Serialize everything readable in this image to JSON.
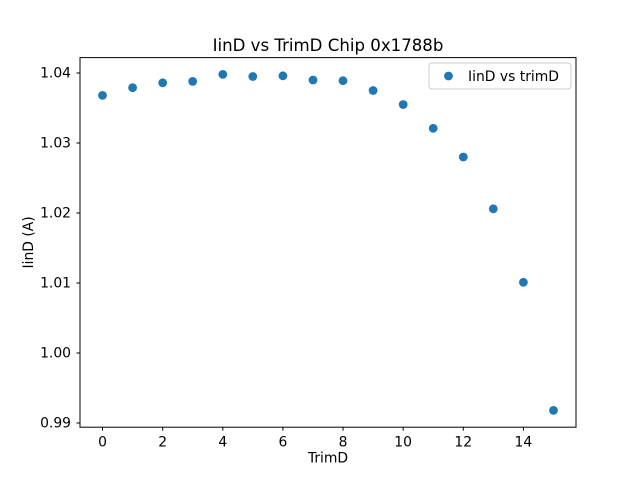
{
  "chart_data": {
    "type": "scatter",
    "title": "IinD vs TrimD Chip 0x1788b",
    "xlabel": "TrimD",
    "ylabel": "IinD (A)",
    "series": [
      {
        "name": "IinD vs trimD",
        "x": [
          0,
          1,
          2,
          3,
          4,
          5,
          6,
          7,
          8,
          9,
          10,
          11,
          12,
          13,
          14,
          15
        ],
        "y": [
          1.0368,
          1.0379,
          1.0386,
          1.0388,
          1.0398,
          1.0395,
          1.0396,
          1.039,
          1.0389,
          1.0375,
          1.0355,
          1.0321,
          1.028,
          1.0206,
          1.0101,
          0.9918
        ]
      }
    ],
    "marker": {
      "shape": "circle",
      "color": "#1f77b4"
    },
    "xlim": [
      -0.75,
      15.75
    ],
    "ylim": [
      0.9894,
      1.0422
    ],
    "xticks": [
      0,
      2,
      4,
      6,
      8,
      10,
      12,
      14
    ],
    "ytick_labels": [
      "0.99",
      "1.00",
      "1.01",
      "1.02",
      "1.03",
      "1.04"
    ],
    "legend": {
      "label": "IinD vs trimD",
      "position": "upper right"
    },
    "grid": false,
    "background": "#ffffff",
    "text_color": "#000000",
    "spine_color": "#000000",
    "legend_border_color": "#cccccc",
    "legend_background": "#ffffff"
  }
}
